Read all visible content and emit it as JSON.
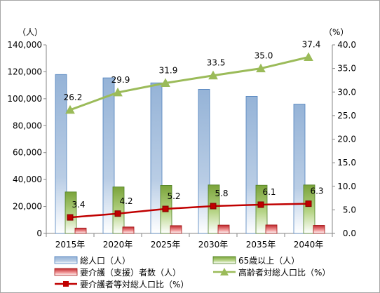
{
  "chart_data": {
    "type": "bar",
    "categories": [
      "2015年",
      "2020年",
      "2025年",
      "2030年",
      "2035年",
      "2040年"
    ],
    "y_left": {
      "unit": "（人）",
      "ylim": [
        0,
        140000
      ],
      "ticks": [
        "0",
        "20,000",
        "40,000",
        "60,000",
        "80,000",
        "100,000",
        "120,000",
        "140,000"
      ]
    },
    "y_right": {
      "unit": "（%）",
      "ylim": [
        0,
        40
      ],
      "ticks": [
        "0.0",
        "5.0",
        "10.0",
        "15.0",
        "20.0",
        "25.0",
        "30.0",
        "35.0",
        "40.0"
      ]
    },
    "series": [
      {
        "name": "総人口（人）",
        "kind": "bar",
        "axis": "left",
        "color": "#95b3d7",
        "values": [
          118000,
          115500,
          111800,
          107000,
          101800,
          96000
        ]
      },
      {
        "name": "65歳以上（人）",
        "kind": "bar",
        "axis": "left",
        "color": "#9bbb59",
        "values": [
          30800,
          34500,
          35700,
          36000,
          35800,
          36000
        ]
      },
      {
        "name": "要介護（支援）者数（人）",
        "kind": "bar",
        "axis": "left",
        "color": "#e06666",
        "values": [
          4000,
          4800,
          5800,
          6200,
          6300,
          6000
        ]
      },
      {
        "name": "高齢者対総人口比（%）",
        "kind": "line",
        "axis": "right",
        "color": "#9bbb59",
        "marker": "triangle",
        "values": [
          26.2,
          29.9,
          31.9,
          33.5,
          35.0,
          37.4
        ],
        "labels": [
          "26.2",
          "29.9",
          "31.9",
          "33.5",
          "35.0",
          "37.4"
        ]
      },
      {
        "name": "要介護者等対総人口比（%）",
        "kind": "line",
        "axis": "right",
        "color": "#c00000",
        "marker": "square",
        "values": [
          3.4,
          4.2,
          5.2,
          5.8,
          6.1,
          6.3
        ],
        "labels": [
          "3.4",
          "4.2",
          "5.2",
          "5.8",
          "6.1",
          "6.3"
        ]
      }
    ],
    "grid": false,
    "legend_position": "bottom"
  }
}
